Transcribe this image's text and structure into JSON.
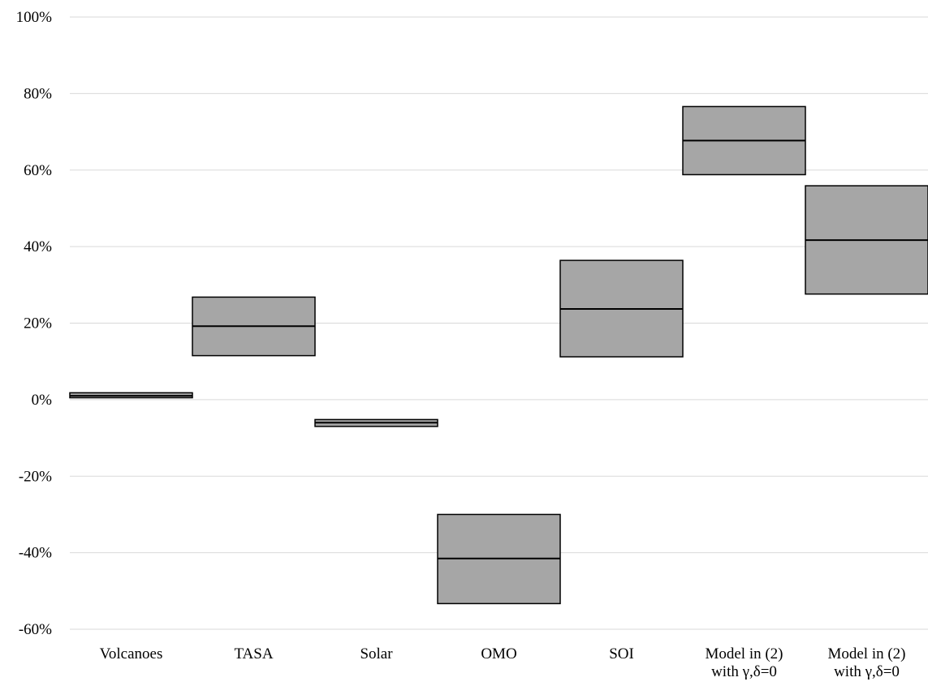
{
  "chart_data": {
    "type": "box",
    "title": "",
    "xlabel": "",
    "ylabel": "",
    "y_unit": "%",
    "ylim": [
      -60,
      100
    ],
    "y_ticks": [
      -60,
      -40,
      -20,
      0,
      20,
      40,
      60,
      80,
      100
    ],
    "y_tick_labels": [
      "-60%",
      "-40%",
      "-20%",
      "0%",
      "20%",
      "40%",
      "60%",
      "80%",
      "100%"
    ],
    "grid": true,
    "legend": "none",
    "box_fill": "#a6a6a6",
    "categories": [
      {
        "lines": [
          "Volcanoes"
        ]
      },
      {
        "lines": [
          "TASA"
        ]
      },
      {
        "lines": [
          "Solar"
        ]
      },
      {
        "lines": [
          "OMO"
        ]
      },
      {
        "lines": [
          "SOI"
        ]
      },
      {
        "lines": [
          "Model in (2)",
          "with γ,δ=0"
        ]
      },
      {
        "lines": [
          "Model in (2)",
          "with γ,δ=0"
        ]
      }
    ],
    "boxes": [
      {
        "low": 0.5,
        "median": 1.0,
        "high": 1.8
      },
      {
        "low": 11.5,
        "median": 19.2,
        "high": 26.8
      },
      {
        "low": -7.0,
        "median": -6.0,
        "high": -5.2
      },
      {
        "low": -53.3,
        "median": -41.5,
        "high": -30.0
      },
      {
        "low": 11.2,
        "median": 23.7,
        "high": 36.4
      },
      {
        "low": 58.8,
        "median": 67.7,
        "high": 76.6
      },
      {
        "low": 27.6,
        "median": 41.7,
        "high": 55.9
      }
    ]
  }
}
